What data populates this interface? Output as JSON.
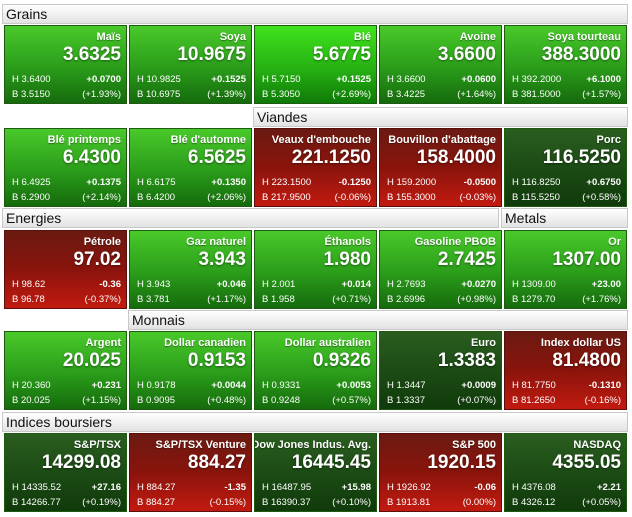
{
  "sections": {
    "grains": "Grains",
    "viandes": "Viandes",
    "energies": "Energies",
    "metals": "Metals",
    "monnais": "Monnais",
    "indices": "Indices boursiers"
  },
  "tiles": [
    {
      "name": "Maïs",
      "price": "3.6325",
      "high": "H 3.6400",
      "low": "B 3.5150",
      "change": "+0.0700",
      "pct": "(+1.93%)",
      "trend": "up"
    },
    {
      "name": "Soya",
      "price": "10.9675",
      "high": "H 10.9825",
      "low": "B 10.6975",
      "change": "+0.1525",
      "pct": "(+1.39%)",
      "trend": "up"
    },
    {
      "name": "Blé",
      "price": "5.6775",
      "high": "H 5.7150",
      "low": "B 5.3050",
      "change": "+0.1525",
      "pct": "(+2.69%)",
      "trend": "strong"
    },
    {
      "name": "Avoine",
      "price": "3.6600",
      "high": "H 3.6600",
      "low": "B 3.4225",
      "change": "+0.0600",
      "pct": "(+1.64%)",
      "trend": "up"
    },
    {
      "name": "Soya tourteau",
      "price": "388.3000",
      "high": "H 392.2000",
      "low": "B 381.5000",
      "change": "+6.1000",
      "pct": "(+1.57%)",
      "trend": "up"
    },
    {
      "name": "Blé printemps",
      "price": "6.4300",
      "high": "H 6.4925",
      "low": "B 6.2900",
      "change": "+0.1375",
      "pct": "(+2.14%)",
      "trend": "up"
    },
    {
      "name": "Blé d'automne",
      "price": "6.5625",
      "high": "H 6.6175",
      "low": "B 6.4200",
      "change": "+0.1350",
      "pct": "(+2.06%)",
      "trend": "up"
    },
    {
      "name": "Veaux d'embouche",
      "price": "221.1250",
      "high": "H 223.1500",
      "low": "B 217.9500",
      "change": "-0.1250",
      "pct": "(-0.06%)",
      "trend": "down"
    },
    {
      "name": "Bouvillon d'abattage",
      "price": "158.4000",
      "high": "H 159.2000",
      "low": "B 155.3000",
      "change": "-0.0500",
      "pct": "(-0.03%)",
      "trend": "down"
    },
    {
      "name": "Porc",
      "price": "116.5250",
      "high": "H 116.8250",
      "low": "B 115.5250",
      "change": "+0.6750",
      "pct": "(+0.58%)",
      "trend": "flat"
    },
    {
      "name": "Pétrole",
      "price": "97.02",
      "high": "H 98.62",
      "low": "B 96.78",
      "change": "-0.36",
      "pct": "(-0.37%)",
      "trend": "down"
    },
    {
      "name": "Gaz naturel",
      "price": "3.943",
      "high": "H 3.943",
      "low": "B 3.781",
      "change": "+0.046",
      "pct": "(+1.17%)",
      "trend": "up"
    },
    {
      "name": "Éthanols",
      "price": "1.980",
      "high": "H 2.001",
      "low": "B 1.958",
      "change": "+0.014",
      "pct": "(+0.71%)",
      "trend": "up"
    },
    {
      "name": "Gasoline PBOB",
      "price": "2.7425",
      "high": "H 2.7693",
      "low": "B 2.6996",
      "change": "+0.0270",
      "pct": "(+0.98%)",
      "trend": "up"
    },
    {
      "name": "Or",
      "price": "1307.00",
      "high": "H 1309.00",
      "low": "B 1279.70",
      "change": "+23.00",
      "pct": "(+1.76%)",
      "trend": "up"
    },
    {
      "name": "Argent",
      "price": "20.025",
      "high": "H 20.360",
      "low": "B 20.025",
      "change": "+0.231",
      "pct": "(+1.15%)",
      "trend": "up"
    },
    {
      "name": "Dollar canadien",
      "price": "0.9153",
      "high": "H 0.9178",
      "low": "B 0.9095",
      "change": "+0.0044",
      "pct": "(+0.48%)",
      "trend": "up"
    },
    {
      "name": "Dollar australien",
      "price": "0.9326",
      "high": "H 0.9331",
      "low": "B 0.9248",
      "change": "+0.0053",
      "pct": "(+0.57%)",
      "trend": "up"
    },
    {
      "name": "Euro",
      "price": "1.3383",
      "high": "H 1.3447",
      "low": "B 1.3337",
      "change": "+0.0009",
      "pct": "(+0.07%)",
      "trend": "flat"
    },
    {
      "name": "Index dollar US",
      "price": "81.4800",
      "high": "H 81.7750",
      "low": "B 81.2650",
      "change": "-0.1310",
      "pct": "(-0.16%)",
      "trend": "down"
    },
    {
      "name": "S&P/TSX",
      "price": "14299.08",
      "high": "H 14335.52",
      "low": "B 14266.77",
      "change": "+27.16",
      "pct": "(+0.19%)",
      "trend": "flat"
    },
    {
      "name": "S&P/TSX Venture",
      "price": "884.27",
      "high": "H 884.27",
      "low": "B 884.27",
      "change": "-1.35",
      "pct": "(-0.15%)",
      "trend": "down"
    },
    {
      "name": "Dow Jones Indus. Avg.",
      "price": "16445.45",
      "high": "H 16487.95",
      "low": "B 16390.37",
      "change": "+15.98",
      "pct": "(+0.10%)",
      "trend": "flat"
    },
    {
      "name": "S&P 500",
      "price": "1920.15",
      "high": "H 1926.92",
      "low": "B 1913.81",
      "change": "-0.06",
      "pct": "(0.00%)",
      "trend": "down"
    },
    {
      "name": "NASDAQ",
      "price": "4355.05",
      "high": "H 4376.08",
      "low": "B 4326.12",
      "change": "+2.21",
      "pct": "(+0.05%)",
      "trend": "flat"
    }
  ]
}
